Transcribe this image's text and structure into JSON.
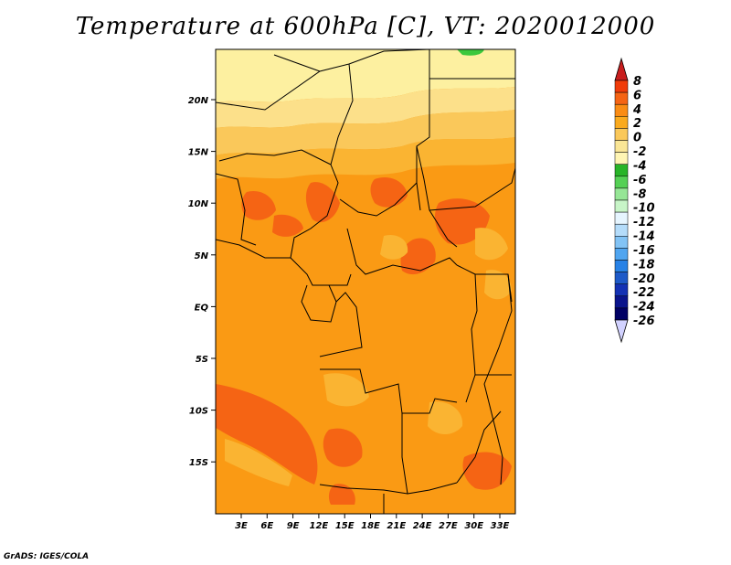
{
  "title": "Temperature at 600hPa [C], VT: 2020012000",
  "credit": "GrADS: IGES/COLA",
  "map": {
    "lat_ticks": [
      "20N",
      "15N",
      "10N",
      "5N",
      "EQ",
      "5S",
      "10S",
      "15S"
    ],
    "lon_ticks": [
      "3E",
      "6E",
      "9E",
      "12E",
      "15E",
      "18E",
      "21E",
      "24E",
      "27E",
      "30E",
      "33E"
    ]
  },
  "colorbar": {
    "levels": [
      "8",
      "6",
      "4",
      "2",
      "0",
      "-2",
      "-4",
      "-6",
      "-8",
      "-10",
      "-12",
      "-14",
      "-16",
      "-18",
      "-20",
      "-22",
      "-24",
      "-26"
    ],
    "colors": [
      "#c81e1e",
      "#f03c0a",
      "#f56414",
      "#fa8c14",
      "#faaa1e",
      "#fac85a",
      "#fae696",
      "#fff5b4",
      "#28b428",
      "#55d055",
      "#96e696",
      "#c8f5c8",
      "#e6f5ff",
      "#b4dcfa",
      "#82c3f5",
      "#50a5f0",
      "#2882e6",
      "#1e5ac8",
      "#1432b4",
      "#0a148c",
      "#000064",
      "#d2d2ff"
    ]
  }
}
